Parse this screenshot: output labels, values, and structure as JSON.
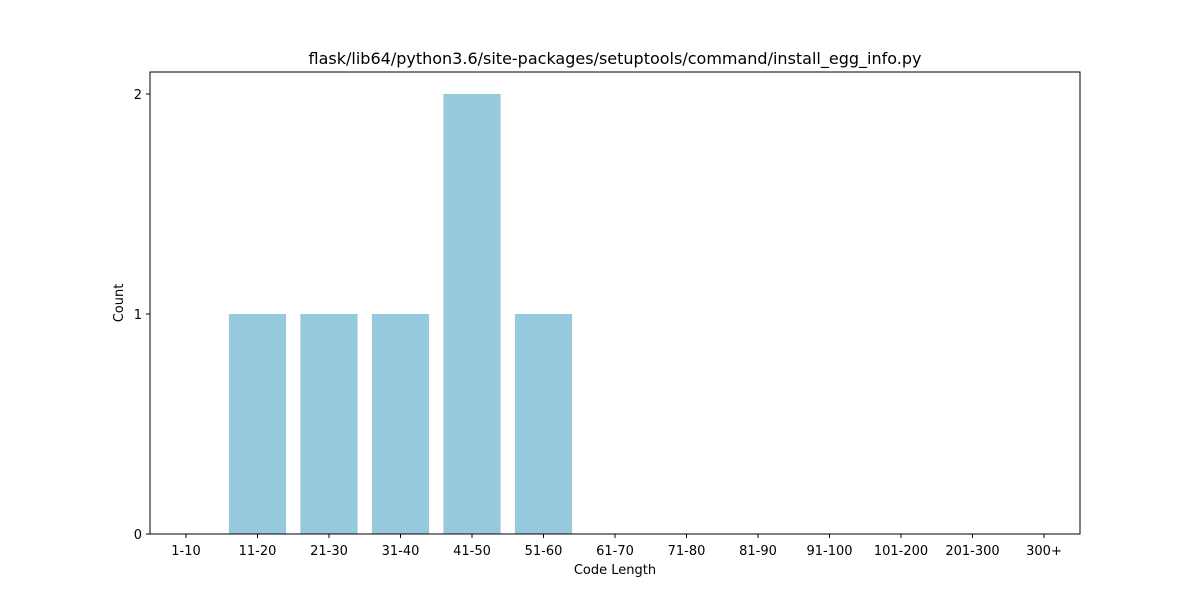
{
  "chart_data": {
    "type": "bar",
    "title": "flask/lib64/python3.6/site-packages/setuptools/command/install_egg_info.py",
    "xlabel": "Code Length",
    "ylabel": "Count",
    "categories": [
      "1-10",
      "11-20",
      "21-30",
      "31-40",
      "41-50",
      "51-60",
      "61-70",
      "71-80",
      "81-90",
      "91-100",
      "101-200",
      "201-300",
      "300+"
    ],
    "values": [
      0,
      1,
      1,
      1,
      2,
      1,
      0,
      0,
      0,
      0,
      0,
      0,
      0
    ],
    "ylim": [
      0,
      2.1
    ],
    "yticks": [
      0,
      1,
      2
    ],
    "bar_color": "#96c9dd",
    "grid": false,
    "legend": "none"
  }
}
